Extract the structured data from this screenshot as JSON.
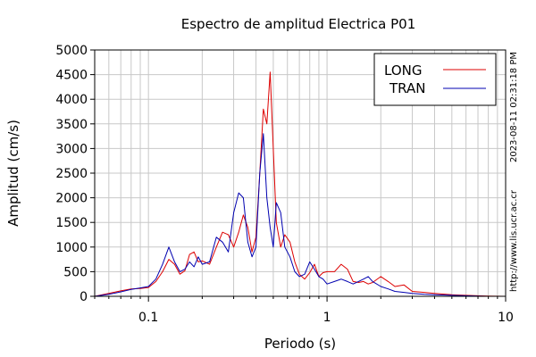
{
  "chart_data": {
    "type": "line",
    "title": "Espectro de amplitud Electrica P01",
    "xlabel": "Periodo (s)",
    "ylabel": "Amplitud (cm/s)",
    "x_scale": "log",
    "xlim": [
      0.05,
      10
    ],
    "ylim": [
      0,
      5000
    ],
    "x_tick_labels": [
      {
        "value": 0.1,
        "label": "0.1"
      },
      {
        "value": 1,
        "label": "1"
      },
      {
        "value": 10,
        "label": "10"
      }
    ],
    "y_ticks": [
      0,
      500,
      1000,
      1500,
      2000,
      2500,
      3000,
      3500,
      4000,
      4500,
      5000
    ],
    "grid": true,
    "legend_position": "top-right",
    "series": [
      {
        "name": "LONG",
        "color": "#dd0000",
        "x": [
          0.05,
          0.06,
          0.07,
          0.08,
          0.09,
          0.1,
          0.11,
          0.12,
          0.13,
          0.14,
          0.15,
          0.16,
          0.17,
          0.18,
          0.19,
          0.2,
          0.22,
          0.24,
          0.26,
          0.28,
          0.3,
          0.32,
          0.34,
          0.36,
          0.38,
          0.4,
          0.42,
          0.44,
          0.46,
          0.48,
          0.5,
          0.52,
          0.55,
          0.58,
          0.62,
          0.66,
          0.7,
          0.75,
          0.8,
          0.85,
          0.9,
          0.95,
          1.0,
          1.1,
          1.2,
          1.3,
          1.4,
          1.5,
          1.6,
          1.7,
          1.8,
          2.0,
          2.2,
          2.4,
          2.7,
          3.0,
          3.5,
          4.0,
          5.0,
          6.0,
          7.0,
          8.0,
          10.0
        ],
        "y": [
          0,
          60,
          110,
          150,
          160,
          180,
          300,
          500,
          750,
          650,
          450,
          520,
          850,
          900,
          700,
          720,
          650,
          1000,
          1300,
          1250,
          1000,
          1300,
          1650,
          1400,
          900,
          1200,
          2500,
          3800,
          3500,
          4550,
          3000,
          1500,
          1000,
          1250,
          1100,
          700,
          450,
          350,
          480,
          650,
          400,
          480,
          500,
          500,
          650,
          550,
          300,
          280,
          300,
          250,
          280,
          400,
          300,
          200,
          230,
          100,
          80,
          60,
          30,
          20,
          10,
          5,
          0
        ]
      },
      {
        "name": "TRAN",
        "color": "#0000b0",
        "x": [
          0.05,
          0.06,
          0.07,
          0.08,
          0.09,
          0.1,
          0.11,
          0.12,
          0.13,
          0.14,
          0.15,
          0.16,
          0.17,
          0.18,
          0.19,
          0.2,
          0.22,
          0.24,
          0.26,
          0.28,
          0.3,
          0.32,
          0.34,
          0.36,
          0.38,
          0.4,
          0.42,
          0.44,
          0.46,
          0.48,
          0.5,
          0.52,
          0.55,
          0.58,
          0.62,
          0.66,
          0.7,
          0.75,
          0.8,
          0.85,
          0.9,
          0.95,
          1.0,
          1.1,
          1.2,
          1.3,
          1.4,
          1.5,
          1.6,
          1.7,
          1.8,
          2.0,
          2.2,
          2.4,
          2.7,
          3.0,
          3.5,
          4.0,
          5.0,
          6.0,
          7.0,
          8.0,
          10.0
        ],
        "y": [
          0,
          40,
          90,
          140,
          170,
          200,
          350,
          650,
          1000,
          700,
          500,
          550,
          700,
          600,
          800,
          650,
          700,
          1200,
          1100,
          900,
          1700,
          2100,
          2000,
          1100,
          800,
          1000,
          2500,
          3300,
          2000,
          1400,
          1000,
          1900,
          1700,
          1000,
          800,
          500,
          400,
          450,
          700,
          550,
          400,
          350,
          250,
          300,
          350,
          300,
          250,
          300,
          350,
          400,
          300,
          200,
          150,
          100,
          80,
          60,
          40,
          30,
          20,
          10,
          5,
          0,
          0
        ]
      }
    ]
  },
  "side_text": {
    "timestamp": "2023-08-11 02:31:18 PM",
    "url": "http://www.lis.ucr.ac.cr"
  }
}
